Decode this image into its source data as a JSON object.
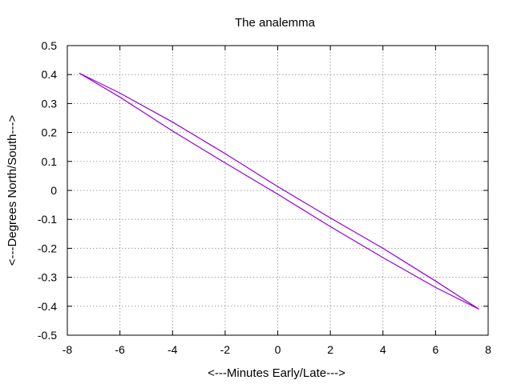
{
  "chart_data": {
    "type": "line",
    "title": "The analemma",
    "xlabel": "<---Minutes Early/Late--->",
    "ylabel": "<---Degrees North/South--->",
    "xlim": [
      -8,
      8
    ],
    "ylim": [
      -0.5,
      0.5
    ],
    "xticks": [
      "-8",
      "-6",
      "-4",
      "-2",
      "0",
      "2",
      "4",
      "6",
      "8"
    ],
    "yticks": [
      "-0.5",
      "-0.4",
      "-0.3",
      "-0.2",
      "-0.1",
      "0",
      "0.1",
      "0.2",
      "0.3",
      "0.4",
      "0.5"
    ],
    "grid": true,
    "legend": "none",
    "series": [
      {
        "color": "#9400d3",
        "x": [
          -7.55,
          -6.0,
          -4.0,
          -2.0,
          0.0,
          2.0,
          4.0,
          6.0,
          7.65,
          6.0,
          4.0,
          2.0,
          0.0,
          -2.0,
          -4.0,
          -6.0,
          -7.55
        ],
        "y": [
          0.405,
          0.336,
          0.236,
          0.127,
          0.013,
          -0.095,
          -0.2,
          -0.313,
          -0.41,
          -0.335,
          -0.232,
          -0.125,
          -0.013,
          0.095,
          0.205,
          0.322,
          0.405
        ]
      }
    ]
  }
}
